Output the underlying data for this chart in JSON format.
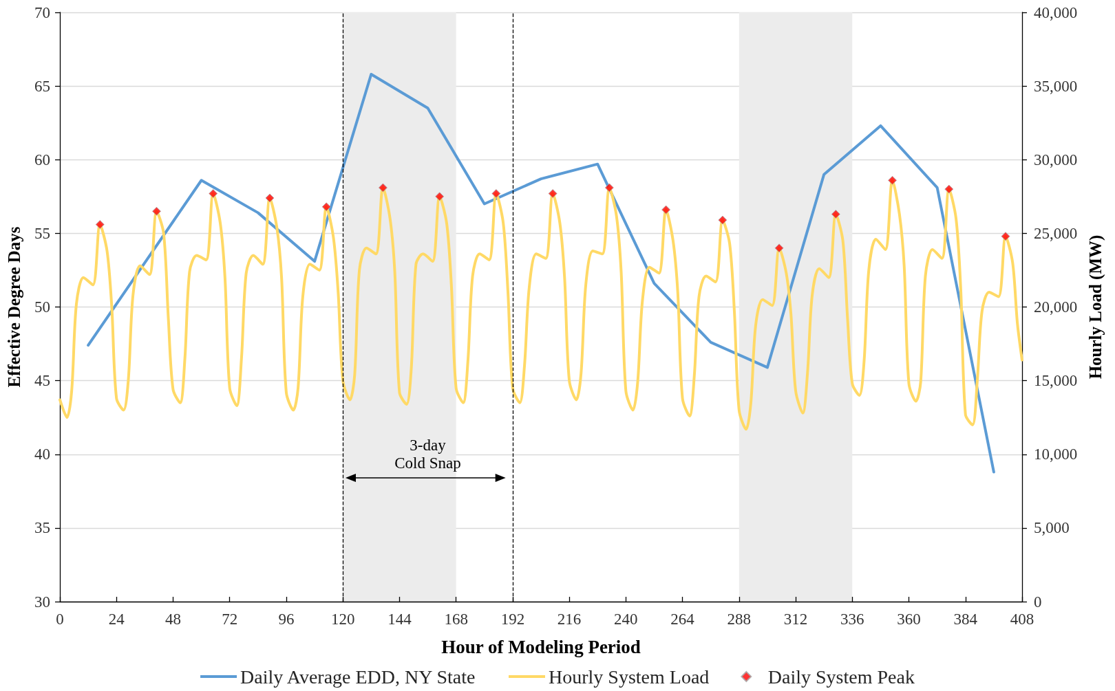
{
  "chart_data": {
    "type": "line",
    "xlabel": "Hour of Modeling Period",
    "ylabel": "Effective Degree Days",
    "y2label": "Hourly Load (MW)",
    "xlim": [
      0,
      408
    ],
    "xticks": [
      0,
      24,
      48,
      72,
      96,
      120,
      144,
      168,
      192,
      216,
      240,
      264,
      288,
      312,
      336,
      360,
      384,
      408
    ],
    "ylim": [
      30,
      70
    ],
    "yticks": [
      30,
      35,
      40,
      45,
      50,
      55,
      60,
      65,
      70
    ],
    "y2lim": [
      0,
      40000
    ],
    "y2ticks": [
      0,
      {
        "value": 5000,
        "label": "5,000"
      },
      {
        "value": 10000,
        "label": "10,000"
      },
      {
        "value": 15000,
        "label": "15,000"
      },
      {
        "value": 20000,
        "label": "20,000"
      },
      {
        "value": 25000,
        "label": "25,000"
      },
      {
        "value": 30000,
        "label": "30,000"
      },
      {
        "value": 35000,
        "label": "35,000"
      },
      {
        "value": 40000,
        "label": "40,000"
      }
    ],
    "grid": "y",
    "legend": "bottom",
    "series": [
      {
        "name": "Daily Average EDD, NY State",
        "color": "#5b9bd5",
        "marker": "none",
        "x": [
          12,
          36,
          60,
          84,
          108,
          132,
          156,
          180,
          204,
          228,
          252,
          276,
          300,
          324,
          348,
          372,
          396
        ],
        "values": [
          47.4,
          53.0,
          58.6,
          56.4,
          53.1,
          65.8,
          63.5,
          57.0,
          58.7,
          59.7,
          51.6,
          47.6,
          45.9,
          59.0,
          62.3,
          58.1,
          38.8
        ]
      },
      {
        "name": "Hourly System Load",
        "axis": "y2",
        "color": "#ffd966",
        "marker": "none",
        "x": [
          0,
          3,
          5,
          7,
          10,
          14,
          17,
          20,
          22,
          24,
          27,
          29,
          31,
          34,
          38,
          41,
          44,
          46,
          48,
          51,
          53,
          55,
          58,
          62,
          65,
          68,
          70,
          72,
          75,
          77,
          79,
          82,
          86,
          89,
          92,
          94,
          96,
          99,
          101,
          103,
          106,
          110,
          113,
          116,
          118,
          120,
          123,
          125,
          127,
          130,
          134,
          137,
          140,
          142,
          144,
          147,
          149,
          151,
          154,
          158,
          161,
          164,
          166,
          168,
          171,
          173,
          175,
          178,
          182,
          185,
          188,
          190,
          192,
          195,
          197,
          199,
          202,
          206,
          209,
          212,
          214,
          216,
          219,
          221,
          223,
          226,
          230,
          233,
          236,
          238,
          240,
          243,
          245,
          247,
          250,
          254,
          257,
          260,
          262,
          264,
          267,
          269,
          271,
          274,
          278,
          281,
          284,
          286,
          288,
          291,
          293,
          295,
          298,
          302,
          305,
          308,
          310,
          312,
          315,
          317,
          319,
          322,
          326,
          329,
          332,
          334,
          336,
          339,
          341,
          343,
          346,
          350,
          353,
          356,
          358,
          360,
          363,
          365,
          367,
          370,
          374,
          377,
          380,
          382,
          384,
          387,
          389,
          391,
          394,
          398,
          401,
          404,
          406,
          408
        ],
        "values": [
          13700,
          12500,
          14300,
          20200,
          22000,
          21500,
          25600,
          23800,
          20000,
          13800,
          13000,
          15000,
          20800,
          22800,
          22200,
          26500,
          25000,
          19200,
          14400,
          13500,
          16500,
          22400,
          23500,
          23200,
          27700,
          25700,
          22000,
          14500,
          13300,
          16500,
          22300,
          23500,
          22900,
          27400,
          25400,
          22000,
          14200,
          13000,
          14500,
          20700,
          22900,
          22500,
          26800,
          24700,
          21000,
          15000,
          13700,
          15400,
          22500,
          24000,
          23600,
          28100,
          26000,
          22400,
          14200,
          13400,
          15800,
          22900,
          23600,
          23100,
          27500,
          25700,
          21500,
          14500,
          13500,
          16300,
          22100,
          23600,
          23200,
          27700,
          25700,
          21000,
          14500,
          13500,
          16000,
          21300,
          23600,
          23300,
          27700,
          25700,
          22000,
          15000,
          13700,
          15500,
          21500,
          23800,
          23600,
          28100,
          26200,
          22400,
          14300,
          13000,
          14900,
          20400,
          22700,
          22300,
          26600,
          24500,
          21000,
          13800,
          12600,
          15300,
          20700,
          22100,
          21700,
          25900,
          24300,
          19700,
          13000,
          11700,
          13500,
          18700,
          20500,
          20100,
          24000,
          22300,
          19500,
          14300,
          12800,
          15500,
          20800,
          22600,
          22000,
          26300,
          24500,
          19200,
          14800,
          14000,
          16300,
          22500,
          24600,
          23900,
          28600,
          26300,
          22800,
          14800,
          13600,
          14900,
          22100,
          23900,
          23300,
          28000,
          26000,
          21200,
          12700,
          12000,
          15000,
          19700,
          21000,
          20700,
          24800,
          23000,
          18900,
          16400
        ]
      },
      {
        "name": "Daily System Peak",
        "type": "scatter",
        "axis": "y2",
        "color": "#ff0000",
        "marker": "diamond",
        "x": [
          17,
          41,
          65,
          89,
          113,
          137,
          161,
          185,
          209,
          233,
          257,
          281,
          305,
          329,
          353,
          377,
          401
        ],
        "values": [
          25600,
          26500,
          27700,
          27400,
          26800,
          28100,
          27500,
          27700,
          27700,
          28100,
          26600,
          25900,
          24000,
          26300,
          28600,
          28000,
          24800
        ]
      }
    ],
    "ref_lines": [
      {
        "axis": "x",
        "value": 120,
        "color": "#000000",
        "line_style": "dashed"
      },
      {
        "axis": "x",
        "value": 192,
        "color": "#000000",
        "line_style": "dashed"
      }
    ],
    "bands": [
      {
        "axis": "x",
        "from": 120,
        "to": 168,
        "color": "#ececec"
      },
      {
        "axis": "x",
        "from": 288,
        "to": 336,
        "color": "#ececec"
      }
    ],
    "annotations": [
      "3-day\nCold Snap"
    ]
  }
}
